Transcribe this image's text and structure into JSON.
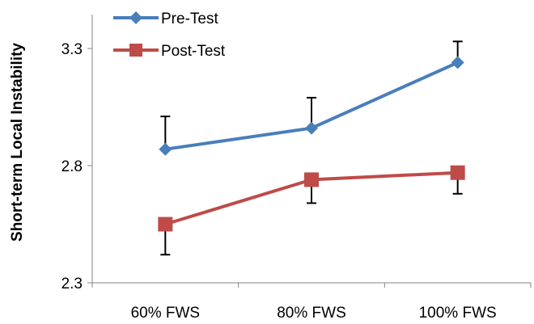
{
  "chart_data": {
    "type": "line",
    "title": "",
    "xlabel": "",
    "ylabel": "Short-term Local Instability",
    "categories": [
      "60% FWS",
      "80% FWS",
      "100% FWS"
    ],
    "ylim": [
      2.3,
      3.3
    ],
    "yticks": [
      "2.3",
      "2.8",
      "3.3"
    ],
    "grid": false,
    "legend_position": "top-left",
    "series": [
      {
        "name": "Pre-Test",
        "color": "#4a7ebb",
        "marker": "diamond",
        "values": [
          2.87,
          2.96,
          3.24
        ],
        "error_bars": [
          {
            "direction": "up",
            "value": 0.14
          },
          {
            "direction": "up",
            "value": 0.13
          },
          {
            "direction": "up",
            "value": 0.09
          }
        ]
      },
      {
        "name": "Post-Test",
        "color": "#be4b48",
        "marker": "square",
        "values": [
          2.55,
          2.74,
          2.77
        ],
        "error_bars": [
          {
            "direction": "down",
            "value": 0.13
          },
          {
            "direction": "down",
            "value": 0.1
          },
          {
            "direction": "down",
            "value": 0.09
          }
        ]
      }
    ]
  }
}
